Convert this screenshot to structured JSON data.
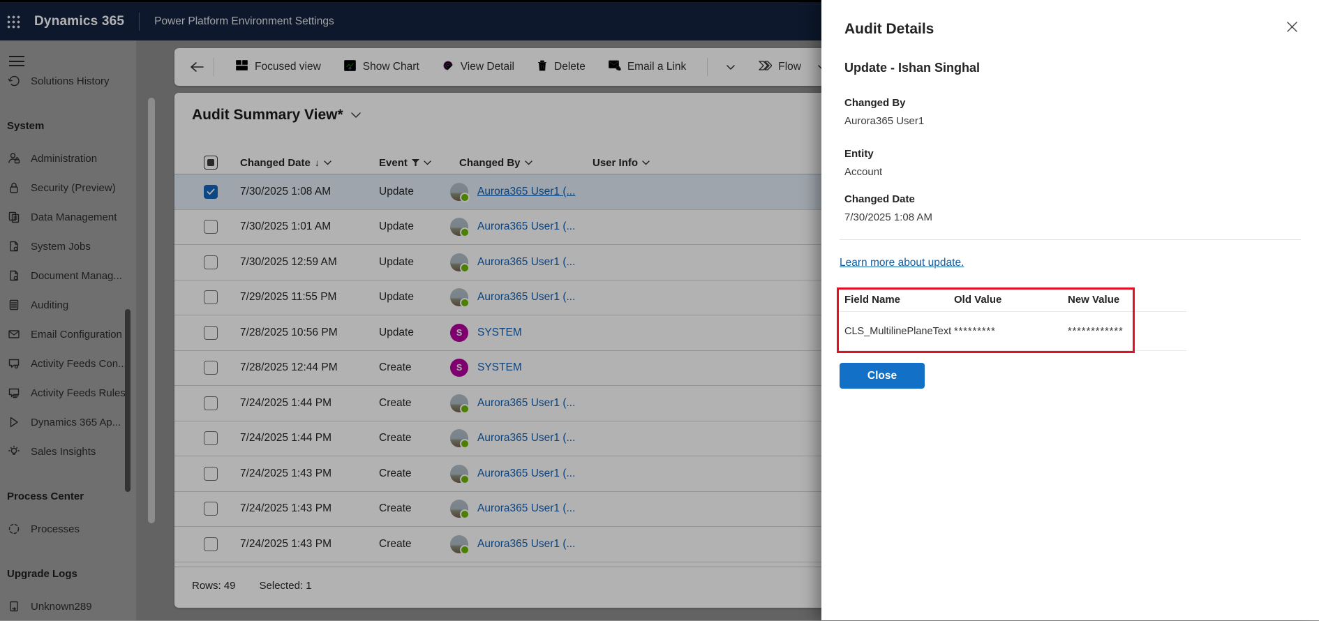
{
  "topbar": {
    "product": "Dynamics 365",
    "page": "Power Platform Environment Settings"
  },
  "sidebar": {
    "sections": [
      {
        "title": "",
        "items": [
          {
            "icon": "history-icon",
            "label": "Solutions History"
          }
        ]
      },
      {
        "title": "System",
        "items": [
          {
            "icon": "admin-person-icon",
            "label": "Administration"
          },
          {
            "icon": "lock-icon",
            "label": "Security (Preview)"
          },
          {
            "icon": "data-copy-icon",
            "label": "Data Management"
          },
          {
            "icon": "page-gear-icon",
            "label": "System Jobs"
          },
          {
            "icon": "document-gear-icon",
            "label": "Document Manag..."
          },
          {
            "icon": "audit-list-icon",
            "label": "Auditing"
          },
          {
            "icon": "envelope-icon",
            "label": "Email Configuration"
          },
          {
            "icon": "feed-gear-icon",
            "label": "Activity Feeds Con..."
          },
          {
            "icon": "feed-rules-icon",
            "label": "Activity Feeds Rules"
          },
          {
            "icon": "d365-app-icon",
            "label": "Dynamics 365 Ap..."
          },
          {
            "icon": "lightbulb-icon",
            "label": "Sales Insights"
          }
        ]
      },
      {
        "title": "Process Center",
        "items": [
          {
            "icon": "process-circle-icon",
            "label": "Processes"
          }
        ]
      },
      {
        "title": "Upgrade Logs",
        "items": [
          {
            "icon": "upgrade-log-icon",
            "label": "Unknown289"
          }
        ]
      }
    ]
  },
  "toolbar": {
    "buttons": [
      {
        "icon": "focused-view-icon",
        "label": "Focused view"
      },
      {
        "icon": "show-chart-icon",
        "label": "Show Chart"
      },
      {
        "icon": "view-detail-icon",
        "label": "View Detail"
      },
      {
        "icon": "delete-icon",
        "label": "Delete"
      },
      {
        "icon": "email-link-icon",
        "label": "Email a Link"
      }
    ],
    "flow_label": "Flow"
  },
  "grid": {
    "title": "Audit Summary View*",
    "columns": [
      "Changed Date",
      "Event",
      "Changed By",
      "User Info"
    ],
    "rows": [
      {
        "date": "7/30/2025 1:08 AM",
        "event": "Update",
        "user": "Aurora365 User1 (...",
        "user_type": "user",
        "selected": true
      },
      {
        "date": "7/30/2025 1:01 AM",
        "event": "Update",
        "user": "Aurora365 User1 (...",
        "user_type": "user",
        "selected": false
      },
      {
        "date": "7/30/2025 12:59 AM",
        "event": "Update",
        "user": "Aurora365 User1 (...",
        "user_type": "user",
        "selected": false
      },
      {
        "date": "7/29/2025 11:55 PM",
        "event": "Update",
        "user": "Aurora365 User1 (...",
        "user_type": "user",
        "selected": false
      },
      {
        "date": "7/28/2025 10:56 PM",
        "event": "Update",
        "user": "SYSTEM",
        "user_type": "system",
        "selected": false
      },
      {
        "date": "7/28/2025 12:44 PM",
        "event": "Create",
        "user": "SYSTEM",
        "user_type": "system",
        "selected": false
      },
      {
        "date": "7/24/2025 1:44 PM",
        "event": "Create",
        "user": "Aurora365 User1 (...",
        "user_type": "user",
        "selected": false
      },
      {
        "date": "7/24/2025 1:44 PM",
        "event": "Create",
        "user": "Aurora365 User1 (...",
        "user_type": "user",
        "selected": false
      },
      {
        "date": "7/24/2025 1:43 PM",
        "event": "Create",
        "user": "Aurora365 User1 (...",
        "user_type": "user",
        "selected": false
      },
      {
        "date": "7/24/2025 1:43 PM",
        "event": "Create",
        "user": "Aurora365 User1 (...",
        "user_type": "user",
        "selected": false
      },
      {
        "date": "7/24/2025 1:43 PM",
        "event": "Create",
        "user": "Aurora365 User1 (...",
        "user_type": "user",
        "selected": false
      }
    ],
    "footer": {
      "rows_label": "Rows: 49",
      "selected_label": "Selected: 1"
    }
  },
  "panel": {
    "title": "Audit Details",
    "subtitle": "Update - Ishan Singhal",
    "fields": [
      {
        "label": "Changed By",
        "value": "Aurora365 User1"
      },
      {
        "label": "Entity",
        "value": "Account"
      },
      {
        "label": "Changed Date",
        "value": "7/30/2025 1:08 AM"
      }
    ],
    "link": "Learn more about update.",
    "audit_table": {
      "columns": [
        "Field Name",
        "Old Value",
        "New Value"
      ],
      "rows": [
        {
          "field": "CLS_MultilinePlaneText",
          "old": "*********",
          "new": "************"
        }
      ]
    },
    "close_label": "Close"
  },
  "colors": {
    "topbar_navy": "#13233f",
    "link_blue": "#1160b7",
    "accent_blue": "#1267c1",
    "close_button_blue": "#1271c6",
    "highlight_red": "#e11022",
    "system_avatar_magenta": "#b4009e",
    "presence_green": "#6bb700"
  }
}
